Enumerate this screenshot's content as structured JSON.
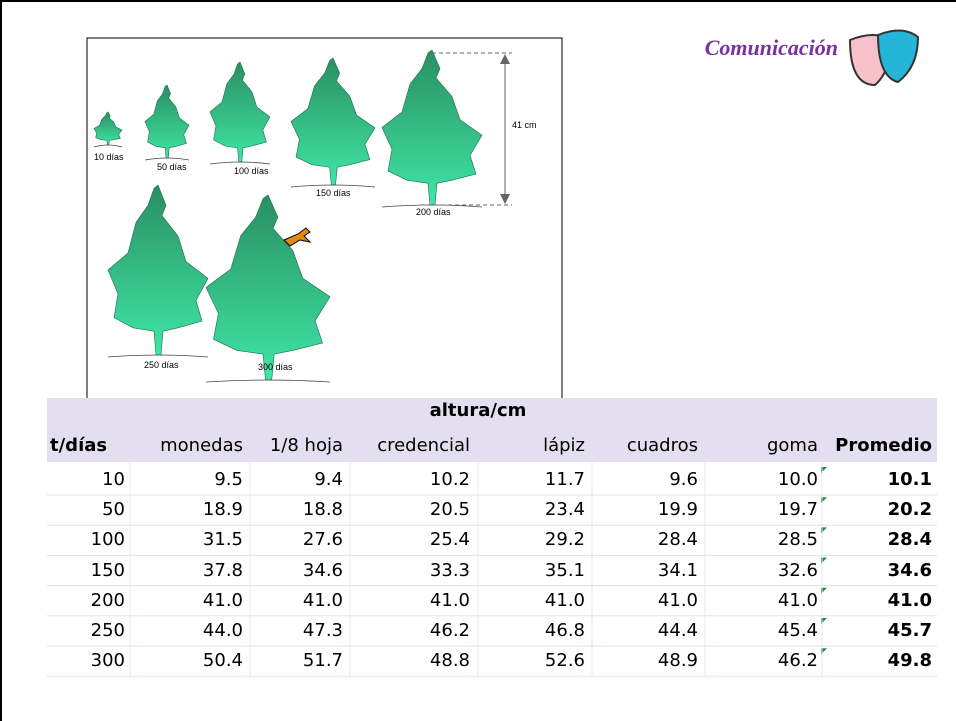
{
  "header": {
    "title": "Comunicación"
  },
  "illustration": {
    "labels": [
      "10 días",
      "50 días",
      "100 días",
      "150 días",
      "200 días",
      "250 días",
      "300 días"
    ],
    "measure": "41 cm"
  },
  "table": {
    "group_header": "altura/cm",
    "columns": [
      "t/días",
      "monedas",
      "1/8 hoja",
      "credencial",
      "lápiz",
      "cuadros",
      "goma",
      "Promedio"
    ],
    "rows": [
      [
        "10",
        "9.5",
        "9.4",
        "10.2",
        "11.7",
        "9.6",
        "10.0",
        "10.1"
      ],
      [
        "50",
        "18.9",
        "18.8",
        "20.5",
        "23.4",
        "19.9",
        "19.7",
        "20.2"
      ],
      [
        "100",
        "31.5",
        "27.6",
        "25.4",
        "29.2",
        "28.4",
        "28.5",
        "28.4"
      ],
      [
        "150",
        "37.8",
        "34.6",
        "33.3",
        "35.1",
        "34.1",
        "32.6",
        "34.6"
      ],
      [
        "200",
        "41.0",
        "41.0",
        "41.0",
        "41.0",
        "41.0",
        "41.0",
        "41.0"
      ],
      [
        "250",
        "44.0",
        "47.3",
        "46.2",
        "46.8",
        "44.4",
        "45.4",
        "45.7"
      ],
      [
        "300",
        "50.4",
        "51.7",
        "48.8",
        "52.6",
        "48.9",
        "46.2",
        "49.8"
      ]
    ]
  }
}
